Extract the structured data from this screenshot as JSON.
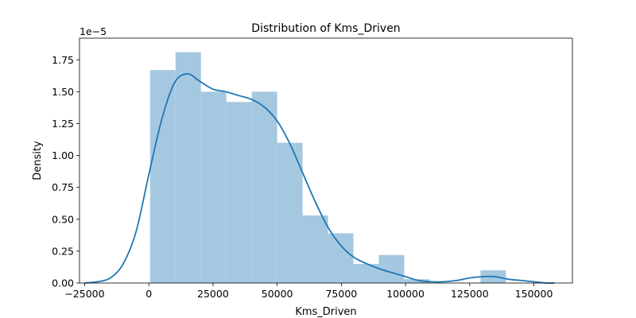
{
  "chart_data": {
    "type": "histogram+kde",
    "title": "Distribution of Kms_Driven",
    "xlabel": "Kms_Driven",
    "ylabel": "Density",
    "y_offset_text": "1e−5",
    "xlim": [
      -27000,
      165000
    ],
    "ylim": [
      0,
      1.92
    ],
    "x_ticks": [
      -25000,
      0,
      25000,
      50000,
      75000,
      100000,
      125000,
      150000
    ],
    "x_tick_labels": [
      "−25000",
      "0",
      "25000",
      "50000",
      "75000",
      "100000",
      "125000",
      "150000"
    ],
    "y_ticks": [
      0,
      0.25,
      0.5,
      0.75,
      1.0,
      1.25,
      1.5,
      1.75
    ],
    "y_tick_labels": [
      "0.00",
      "0.25",
      "0.50",
      "0.75",
      "1.00",
      "1.25",
      "1.50",
      "1.75"
    ],
    "bins": [
      {
        "x0": 500,
        "x1": 10400,
        "density": 1.67
      },
      {
        "x0": 10400,
        "x1": 20300,
        "density": 1.81
      },
      {
        "x0": 20300,
        "x1": 30200,
        "density": 1.5
      },
      {
        "x0": 30200,
        "x1": 40100,
        "density": 1.42
      },
      {
        "x0": 40100,
        "x1": 50000,
        "density": 1.5
      },
      {
        "x0": 50000,
        "x1": 59900,
        "density": 1.1
      },
      {
        "x0": 59900,
        "x1": 69800,
        "density": 0.53
      },
      {
        "x0": 69800,
        "x1": 79700,
        "density": 0.39
      },
      {
        "x0": 79700,
        "x1": 89600,
        "density": 0.15
      },
      {
        "x0": 89600,
        "x1": 99500,
        "density": 0.22
      },
      {
        "x0": 99500,
        "x1": 109400,
        "density": 0.03
      },
      {
        "x0": 109400,
        "x1": 119300,
        "density": 0.0
      },
      {
        "x0": 119300,
        "x1": 129200,
        "density": 0.0
      },
      {
        "x0": 129200,
        "x1": 139100,
        "density": 0.1
      }
    ],
    "kde": {
      "x": [
        -25000,
        -20000,
        -15000,
        -10000,
        -5000,
        0,
        5000,
        10000,
        15000,
        20000,
        25000,
        30000,
        35000,
        40000,
        45000,
        50000,
        55000,
        60000,
        65000,
        70000,
        75000,
        80000,
        85000,
        90000,
        95000,
        100000,
        105000,
        110000,
        115000,
        120000,
        125000,
        130000,
        135000,
        140000,
        145000,
        150000,
        155000,
        158000
      ],
      "y": [
        0.0,
        0.01,
        0.04,
        0.15,
        0.4,
        0.85,
        1.28,
        1.57,
        1.64,
        1.58,
        1.52,
        1.5,
        1.47,
        1.44,
        1.38,
        1.27,
        1.09,
        0.86,
        0.63,
        0.43,
        0.29,
        0.2,
        0.15,
        0.11,
        0.08,
        0.05,
        0.02,
        0.01,
        0.01,
        0.02,
        0.04,
        0.05,
        0.05,
        0.03,
        0.02,
        0.01,
        0.0,
        0.0
      ]
    },
    "colors": {
      "bar": "#a5c8e1",
      "line": "#1f77b4"
    },
    "grid": false,
    "legend": "none"
  }
}
